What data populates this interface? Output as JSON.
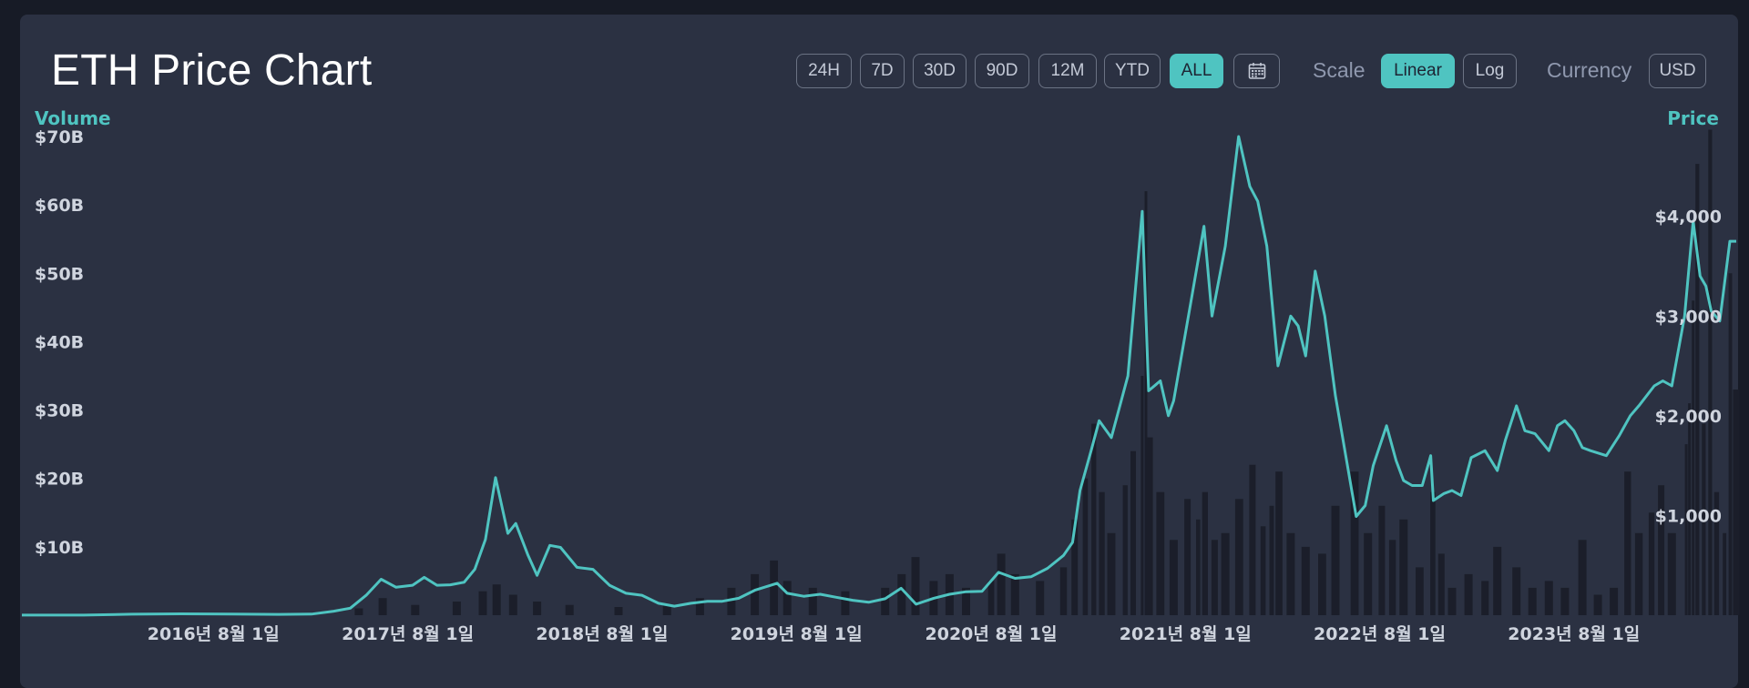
{
  "header": {
    "title": "ETH Price Chart"
  },
  "range_buttons": [
    {
      "label": "24H",
      "active": false
    },
    {
      "label": "7D",
      "active": false
    },
    {
      "label": "30D",
      "active": false
    },
    {
      "label": "90D",
      "active": false
    },
    {
      "label": "12M",
      "active": false
    },
    {
      "label": "YTD",
      "active": false
    },
    {
      "label": "ALL",
      "active": true
    }
  ],
  "scale": {
    "label": "Scale",
    "options": [
      "Linear",
      "Log"
    ],
    "selected": "Linear"
  },
  "currency": {
    "label": "Currency",
    "value": "USD"
  },
  "colors": {
    "price_line": "#4fc4c1",
    "volume_bars": "#1b1e2a",
    "accent": "#4fc4c1"
  },
  "icons": {
    "date_picker": "calendar-icon"
  },
  "chart_data": {
    "type": "bar+line",
    "title": "ETH Price Chart",
    "y_left_label": "Volume",
    "y_right_label": "Price",
    "y_left_ticks": [
      "$10B",
      "$20B",
      "$30B",
      "$40B",
      "$50B",
      "$60B",
      "$70B"
    ],
    "y_right_ticks": [
      "$1,000",
      "$2,000",
      "$3,000",
      "$4,000"
    ],
    "x_ticks": [
      {
        "date": "2016-08-01",
        "label": "2016년 8월 1일"
      },
      {
        "date": "2017-08-01",
        "label": "2017년 8월 1일"
      },
      {
        "date": "2018-08-01",
        "label": "2018년 8월 1일"
      },
      {
        "date": "2019-08-01",
        "label": "2019년 8월 1일"
      },
      {
        "date": "2020-08-01",
        "label": "2020년 8월 1일"
      },
      {
        "date": "2021-08-01",
        "label": "2021년 8월 1일"
      },
      {
        "date": "2022-08-01",
        "label": "2022년 8월 1일"
      },
      {
        "date": "2023-08-01",
        "label": "2023년 8월 1일"
      }
    ],
    "x_range": [
      "2015-08-07",
      "2024-06-01"
    ],
    "volume_ylim": [
      0,
      70
    ],
    "price_ylim": [
      0,
      4800
    ],
    "grid": false,
    "series": [
      {
        "name": "Price",
        "type": "line",
        "points": [
          [
            "2015-08-07",
            1
          ],
          [
            "2015-12-01",
            1
          ],
          [
            "2016-03-01",
            10
          ],
          [
            "2016-06-01",
            14
          ],
          [
            "2016-09-01",
            12
          ],
          [
            "2016-12-01",
            8
          ],
          [
            "2017-02-01",
            11
          ],
          [
            "2017-03-15",
            40
          ],
          [
            "2017-04-15",
            70
          ],
          [
            "2017-05-15",
            200
          ],
          [
            "2017-06-12",
            360
          ],
          [
            "2017-07-10",
            280
          ],
          [
            "2017-08-10",
            300
          ],
          [
            "2017-09-01",
            380
          ],
          [
            "2017-09-25",
            300
          ],
          [
            "2017-10-20",
            305
          ],
          [
            "2017-11-15",
            330
          ],
          [
            "2017-12-05",
            460
          ],
          [
            "2017-12-25",
            760
          ],
          [
            "2018-01-13",
            1380
          ],
          [
            "2018-02-05",
            820
          ],
          [
            "2018-02-20",
            920
          ],
          [
            "2018-03-15",
            600
          ],
          [
            "2018-04-01",
            400
          ],
          [
            "2018-04-25",
            700
          ],
          [
            "2018-05-15",
            680
          ],
          [
            "2018-06-15",
            480
          ],
          [
            "2018-07-15",
            460
          ],
          [
            "2018-08-15",
            300
          ],
          [
            "2018-09-15",
            220
          ],
          [
            "2018-10-15",
            200
          ],
          [
            "2018-11-15",
            120
          ],
          [
            "2018-12-15",
            90
          ],
          [
            "2019-01-15",
            120
          ],
          [
            "2019-02-15",
            140
          ],
          [
            "2019-03-15",
            140
          ],
          [
            "2019-04-15",
            170
          ],
          [
            "2019-05-15",
            250
          ],
          [
            "2019-06-26",
            320
          ],
          [
            "2019-07-15",
            220
          ],
          [
            "2019-08-15",
            190
          ],
          [
            "2019-09-15",
            210
          ],
          [
            "2019-10-15",
            180
          ],
          [
            "2019-11-15",
            150
          ],
          [
            "2019-12-15",
            130
          ],
          [
            "2020-01-15",
            165
          ],
          [
            "2020-02-14",
            270
          ],
          [
            "2020-03-13",
            110
          ],
          [
            "2020-04-15",
            170
          ],
          [
            "2020-05-15",
            210
          ],
          [
            "2020-06-15",
            235
          ],
          [
            "2020-07-15",
            240
          ],
          [
            "2020-08-15",
            430
          ],
          [
            "2020-09-15",
            370
          ],
          [
            "2020-10-15",
            385
          ],
          [
            "2020-11-15",
            470
          ],
          [
            "2020-12-15",
            600
          ],
          [
            "2021-01-01",
            730
          ],
          [
            "2021-01-15",
            1250
          ],
          [
            "2021-02-05",
            1650
          ],
          [
            "2021-02-20",
            1950
          ],
          [
            "2021-03-15",
            1780
          ],
          [
            "2021-04-15",
            2400
          ],
          [
            "2021-05-12",
            4050
          ],
          [
            "2021-05-24",
            2250
          ],
          [
            "2021-06-15",
            2350
          ],
          [
            "2021-06-30",
            2000
          ],
          [
            "2021-07-10",
            2150
          ],
          [
            "2021-08-15",
            3250
          ],
          [
            "2021-09-05",
            3900
          ],
          [
            "2021-09-20",
            3000
          ],
          [
            "2021-10-15",
            3700
          ],
          [
            "2021-11-09",
            4800
          ],
          [
            "2021-11-30",
            4300
          ],
          [
            "2021-12-15",
            4150
          ],
          [
            "2022-01-01",
            3700
          ],
          [
            "2022-01-22",
            2500
          ],
          [
            "2022-02-15",
            3000
          ],
          [
            "2022-03-01",
            2900
          ],
          [
            "2022-03-15",
            2600
          ],
          [
            "2022-04-02",
            3450
          ],
          [
            "2022-04-20",
            3000
          ],
          [
            "2022-05-10",
            2200
          ],
          [
            "2022-06-18",
            990
          ],
          [
            "2022-07-05",
            1100
          ],
          [
            "2022-07-20",
            1500
          ],
          [
            "2022-08-14",
            1900
          ],
          [
            "2022-09-01",
            1550
          ],
          [
            "2022-09-15",
            1350
          ],
          [
            "2022-10-01",
            1300
          ],
          [
            "2022-10-20",
            1300
          ],
          [
            "2022-11-05",
            1600
          ],
          [
            "2022-11-10",
            1150
          ],
          [
            "2022-11-30",
            1220
          ],
          [
            "2022-12-15",
            1250
          ],
          [
            "2023-01-01",
            1200
          ],
          [
            "2023-01-20",
            1580
          ],
          [
            "2023-02-15",
            1650
          ],
          [
            "2023-03-10",
            1450
          ],
          [
            "2023-03-25",
            1750
          ],
          [
            "2023-04-15",
            2100
          ],
          [
            "2023-05-01",
            1850
          ],
          [
            "2023-05-20",
            1820
          ],
          [
            "2023-06-15",
            1650
          ],
          [
            "2023-07-01",
            1900
          ],
          [
            "2023-07-15",
            1950
          ],
          [
            "2023-08-01",
            1850
          ],
          [
            "2023-08-17",
            1680
          ],
          [
            "2023-09-01",
            1650
          ],
          [
            "2023-10-01",
            1600
          ],
          [
            "2023-10-25",
            1800
          ],
          [
            "2023-11-15",
            2000
          ],
          [
            "2023-12-01",
            2100
          ],
          [
            "2023-12-30",
            2300
          ],
          [
            "2024-01-15",
            2350
          ],
          [
            "2024-02-01",
            2300
          ],
          [
            "2024-02-25",
            3000
          ],
          [
            "2024-03-12",
            3950
          ],
          [
            "2024-03-25",
            3400
          ],
          [
            "2024-04-05",
            3300
          ],
          [
            "2024-04-15",
            3050
          ],
          [
            "2024-05-01",
            2950
          ],
          [
            "2024-05-20",
            3750
          ],
          [
            "2024-06-01",
            3750
          ]
        ]
      },
      {
        "name": "Volume",
        "type": "bar",
        "points": [
          [
            "2016-01-01",
            0.2
          ],
          [
            "2016-06-01",
            0.3
          ],
          [
            "2017-01-01",
            0.2
          ],
          [
            "2017-05-01",
            1
          ],
          [
            "2017-06-15",
            2.5
          ],
          [
            "2017-08-15",
            1.5
          ],
          [
            "2017-11-01",
            2
          ],
          [
            "2017-12-20",
            3.5
          ],
          [
            "2018-01-15",
            4.5
          ],
          [
            "2018-02-15",
            3
          ],
          [
            "2018-04-01",
            2
          ],
          [
            "2018-06-01",
            1.5
          ],
          [
            "2018-09-01",
            1.2
          ],
          [
            "2018-12-01",
            1.5
          ],
          [
            "2019-02-01",
            2.5
          ],
          [
            "2019-04-01",
            4
          ],
          [
            "2019-05-15",
            6
          ],
          [
            "2019-06-20",
            8
          ],
          [
            "2019-07-15",
            5
          ],
          [
            "2019-09-01",
            4
          ],
          [
            "2019-11-01",
            3.5
          ],
          [
            "2020-01-15",
            4
          ],
          [
            "2020-02-15",
            6
          ],
          [
            "2020-03-12",
            8.5
          ],
          [
            "2020-04-15",
            5
          ],
          [
            "2020-05-15",
            6
          ],
          [
            "2020-06-15",
            4
          ],
          [
            "2020-08-01",
            5
          ],
          [
            "2020-08-20",
            9
          ],
          [
            "2020-09-15",
            6
          ],
          [
            "2020-11-01",
            5
          ],
          [
            "2020-12-15",
            7
          ],
          [
            "2021-01-05",
            14
          ],
          [
            "2021-01-25",
            20
          ],
          [
            "2021-02-10",
            28
          ],
          [
            "2021-02-25",
            18
          ],
          [
            "2021-03-15",
            12
          ],
          [
            "2021-04-10",
            19
          ],
          [
            "2021-04-25",
            24
          ],
          [
            "2021-05-12",
            35
          ],
          [
            "2021-05-19",
            62
          ],
          [
            "2021-05-26",
            26
          ],
          [
            "2021-06-15",
            18
          ],
          [
            "2021-07-10",
            11
          ],
          [
            "2021-08-05",
            17
          ],
          [
            "2021-08-25",
            14
          ],
          [
            "2021-09-07",
            18
          ],
          [
            "2021-09-25",
            11
          ],
          [
            "2021-10-15",
            12
          ],
          [
            "2021-11-10",
            17
          ],
          [
            "2021-12-05",
            22
          ],
          [
            "2021-12-25",
            13
          ],
          [
            "2022-01-10",
            16
          ],
          [
            "2022-01-24",
            21
          ],
          [
            "2022-02-15",
            12
          ],
          [
            "2022-03-15",
            10
          ],
          [
            "2022-04-15",
            9
          ],
          [
            "2022-05-10",
            16
          ],
          [
            "2022-06-15",
            21
          ],
          [
            "2022-07-10",
            12
          ],
          [
            "2022-08-05",
            16
          ],
          [
            "2022-08-25",
            11
          ],
          [
            "2022-09-15",
            14
          ],
          [
            "2022-10-15",
            7
          ],
          [
            "2022-11-09",
            18
          ],
          [
            "2022-11-25",
            9
          ],
          [
            "2022-12-15",
            4
          ],
          [
            "2023-01-15",
            6
          ],
          [
            "2023-02-15",
            5
          ],
          [
            "2023-03-10",
            10
          ],
          [
            "2023-04-15",
            7
          ],
          [
            "2023-05-15",
            4
          ],
          [
            "2023-06-15",
            5
          ],
          [
            "2023-07-15",
            4
          ],
          [
            "2023-08-17",
            11
          ],
          [
            "2023-09-15",
            3
          ],
          [
            "2023-10-15",
            4
          ],
          [
            "2023-11-10",
            21
          ],
          [
            "2023-12-01",
            12
          ],
          [
            "2023-12-25",
            15
          ],
          [
            "2024-01-12",
            19
          ],
          [
            "2024-02-01",
            12
          ],
          [
            "2024-02-28",
            25
          ],
          [
            "2024-03-05",
            31
          ],
          [
            "2024-03-12",
            46
          ],
          [
            "2024-03-20",
            66
          ],
          [
            "2024-04-01",
            28
          ],
          [
            "2024-04-13",
            71
          ],
          [
            "2024-04-25",
            18
          ],
          [
            "2024-05-10",
            12
          ],
          [
            "2024-05-21",
            50
          ],
          [
            "2024-06-01",
            33
          ]
        ]
      }
    ]
  }
}
